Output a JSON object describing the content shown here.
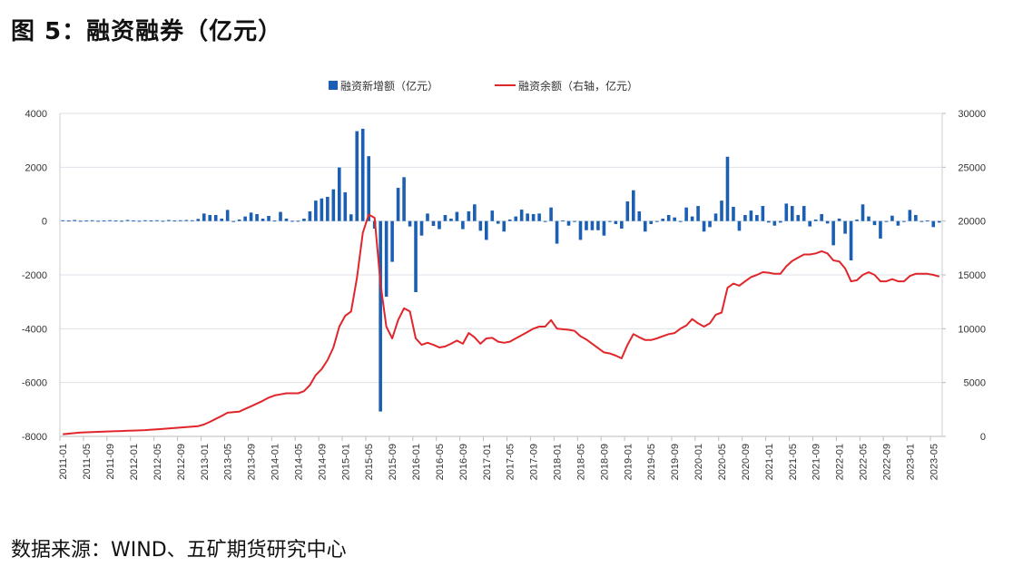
{
  "title": "图 5：融资融券（亿元）",
  "source": "数据来源：WIND、五矿期货研究中心",
  "chart_data": {
    "type": "bar+line",
    "title": "图 5：融资融券（亿元）",
    "legend_position": "top",
    "grid": true,
    "colors": {
      "bars": "#1b5fb5",
      "line": "#e0262b",
      "grid": "#dde2ea"
    },
    "y_left": {
      "lim": [
        -8000,
        4000
      ],
      "ticks": [
        "4000",
        "2000",
        "0",
        "-2000",
        "-4000",
        "-6000",
        "-8000"
      ]
    },
    "y_right": {
      "lim": [
        0,
        30000
      ],
      "ticks": [
        "30000",
        "25000",
        "20000",
        "15000",
        "10000",
        "5000",
        "0"
      ]
    },
    "tick_labels": [
      "2011-01",
      "2011-05",
      "2011-09",
      "2012-01",
      "2012-05",
      "2012-09",
      "2013-01",
      "2013-05",
      "2013-09",
      "2014-01",
      "2014-05",
      "2014-09",
      "2015-01",
      "2015-05",
      "2015-09",
      "2016-01",
      "2016-05",
      "2016-09",
      "2017-01",
      "2017-05",
      "2017-09",
      "2018-01",
      "2018-05",
      "2018-09",
      "2019-01",
      "2019-05",
      "2019-09",
      "2020-01",
      "2020-05",
      "2020-09",
      "2021-01",
      "2021-05",
      "2021-09",
      "2022-01",
      "2022-05",
      "2022-09",
      "2023-01",
      "2023-05"
    ],
    "categories": [
      "2011-01",
      "2011-02",
      "2011-03",
      "2011-04",
      "2011-05",
      "2011-06",
      "2011-07",
      "2011-08",
      "2011-09",
      "2011-10",
      "2011-11",
      "2011-12",
      "2012-01",
      "2012-02",
      "2012-03",
      "2012-04",
      "2012-05",
      "2012-06",
      "2012-07",
      "2012-08",
      "2012-09",
      "2012-10",
      "2012-11",
      "2012-12",
      "2013-01",
      "2013-02",
      "2013-03",
      "2013-04",
      "2013-05",
      "2013-06",
      "2013-07",
      "2013-08",
      "2013-09",
      "2013-10",
      "2013-11",
      "2013-12",
      "2014-01",
      "2014-02",
      "2014-03",
      "2014-04",
      "2014-05",
      "2014-06",
      "2014-07",
      "2014-08",
      "2014-09",
      "2014-10",
      "2014-11",
      "2014-12",
      "2015-01",
      "2015-02",
      "2015-03",
      "2015-04",
      "2015-05",
      "2015-06",
      "2015-07",
      "2015-08",
      "2015-09",
      "2015-10",
      "2015-11",
      "2015-12",
      "2016-01",
      "2016-02",
      "2016-03",
      "2016-04",
      "2016-05",
      "2016-06",
      "2016-07",
      "2016-08",
      "2016-09",
      "2016-10",
      "2016-11",
      "2016-12",
      "2017-01",
      "2017-02",
      "2017-03",
      "2017-04",
      "2017-05",
      "2017-06",
      "2017-07",
      "2017-08",
      "2017-09",
      "2017-10",
      "2017-11",
      "2017-12",
      "2018-01",
      "2018-02",
      "2018-03",
      "2018-04",
      "2018-05",
      "2018-06",
      "2018-07",
      "2018-08",
      "2018-09",
      "2018-10",
      "2018-11",
      "2018-12",
      "2019-01",
      "2019-02",
      "2019-03",
      "2019-04",
      "2019-05",
      "2019-06",
      "2019-07",
      "2019-08",
      "2019-09",
      "2019-10",
      "2019-11",
      "2019-12",
      "2020-01",
      "2020-02",
      "2020-03",
      "2020-04",
      "2020-05",
      "2020-06",
      "2020-07",
      "2020-08",
      "2020-09",
      "2020-10",
      "2020-11",
      "2020-12",
      "2021-01",
      "2021-02",
      "2021-03",
      "2021-04",
      "2021-05",
      "2021-06",
      "2021-07",
      "2021-08",
      "2021-09",
      "2021-10",
      "2021-11",
      "2021-12",
      "2022-01",
      "2022-02",
      "2022-03",
      "2022-04",
      "2022-05",
      "2022-06",
      "2022-07",
      "2022-08",
      "2022-09",
      "2022-10",
      "2022-11",
      "2022-12",
      "2023-01",
      "2023-02",
      "2023-03",
      "2023-04",
      "2023-05",
      "2023-06"
    ],
    "series": [
      {
        "name": "融资新增额（亿元）",
        "type": "bar",
        "axis": "left",
        "values": [
          30,
          20,
          40,
          10,
          20,
          30,
          10,
          20,
          30,
          20,
          10,
          40,
          20,
          10,
          30,
          20,
          30,
          10,
          40,
          20,
          30,
          40,
          30,
          80,
          280,
          225,
          225,
          90,
          415,
          0,
          56,
          170,
          315,
          260,
          90,
          190,
          20,
          340,
          90,
          10,
          10,
          90,
          360,
          760,
          840,
          900,
          1180,
          1990,
          1070,
          250,
          3340,
          3430,
          2410,
          -280,
          -7075,
          -2810,
          -1515,
          1235,
          1630,
          -200,
          -2640,
          -540,
          280,
          -180,
          -300,
          225,
          90,
          340,
          -300,
          360,
          620,
          -360,
          -700,
          390,
          -100,
          -390,
          56,
          170,
          425,
          280,
          260,
          280,
          0,
          505,
          -840,
          20,
          -170,
          -20,
          -700,
          -340,
          -340,
          -340,
          -540,
          0,
          -110,
          -280,
          730,
          1145,
          360,
          -390,
          -110,
          0,
          90,
          225,
          135,
          0,
          505,
          170,
          560,
          -390,
          -225,
          280,
          760,
          2390,
          530,
          -360,
          225,
          390,
          225,
          560,
          -56,
          -170,
          -56,
          650,
          560,
          225,
          560,
          -200,
          56,
          260,
          -90,
          -900,
          90,
          -470,
          -1460,
          56,
          620,
          170,
          -150,
          -650,
          -20,
          200,
          -170,
          -20,
          415,
          225,
          0,
          20,
          -225,
          -56
        ]
      },
      {
        "name": "融资余额（右轴，亿元）",
        "type": "line",
        "axis": "right",
        "values": [
          200,
          250,
          300,
          350,
          380,
          400,
          420,
          440,
          460,
          480,
          500,
          520,
          540,
          560,
          580,
          620,
          660,
          700,
          740,
          780,
          820,
          860,
          900,
          950,
          1100,
          1350,
          1630,
          1900,
          2200,
          2250,
          2300,
          2550,
          2800,
          3050,
          3300,
          3600,
          3800,
          3900,
          4000,
          4000,
          4000,
          4200,
          4760,
          5700,
          6250,
          7080,
          8260,
          10200,
          11200,
          11600,
          14700,
          18900,
          20600,
          20300,
          14200,
          10200,
          9100,
          10800,
          11900,
          11600,
          9100,
          8500,
          8700,
          8500,
          8260,
          8350,
          8600,
          8900,
          8600,
          9600,
          9200,
          8600,
          9100,
          9150,
          8800,
          8700,
          8800,
          9100,
          9400,
          9700,
          10000,
          10200,
          10200,
          10800,
          10000,
          9950,
          9900,
          9800,
          9300,
          9000,
          8600,
          8200,
          7800,
          7700,
          7500,
          7250,
          8500,
          9500,
          9200,
          8950,
          8950,
          9100,
          9300,
          9500,
          9600,
          10000,
          10300,
          10900,
          10500,
          10200,
          10500,
          11300,
          11500,
          13800,
          14200,
          14000,
          14400,
          14800,
          15000,
          15250,
          15200,
          15100,
          15100,
          15800,
          16300,
          16600,
          16900,
          16900,
          17000,
          17200,
          17000,
          16350,
          16250,
          15600,
          14400,
          14500,
          15000,
          15250,
          15000,
          14400,
          14400,
          14600,
          14400,
          14400,
          14900,
          15100,
          15100,
          15100,
          15000,
          14850
        ]
      }
    ]
  }
}
